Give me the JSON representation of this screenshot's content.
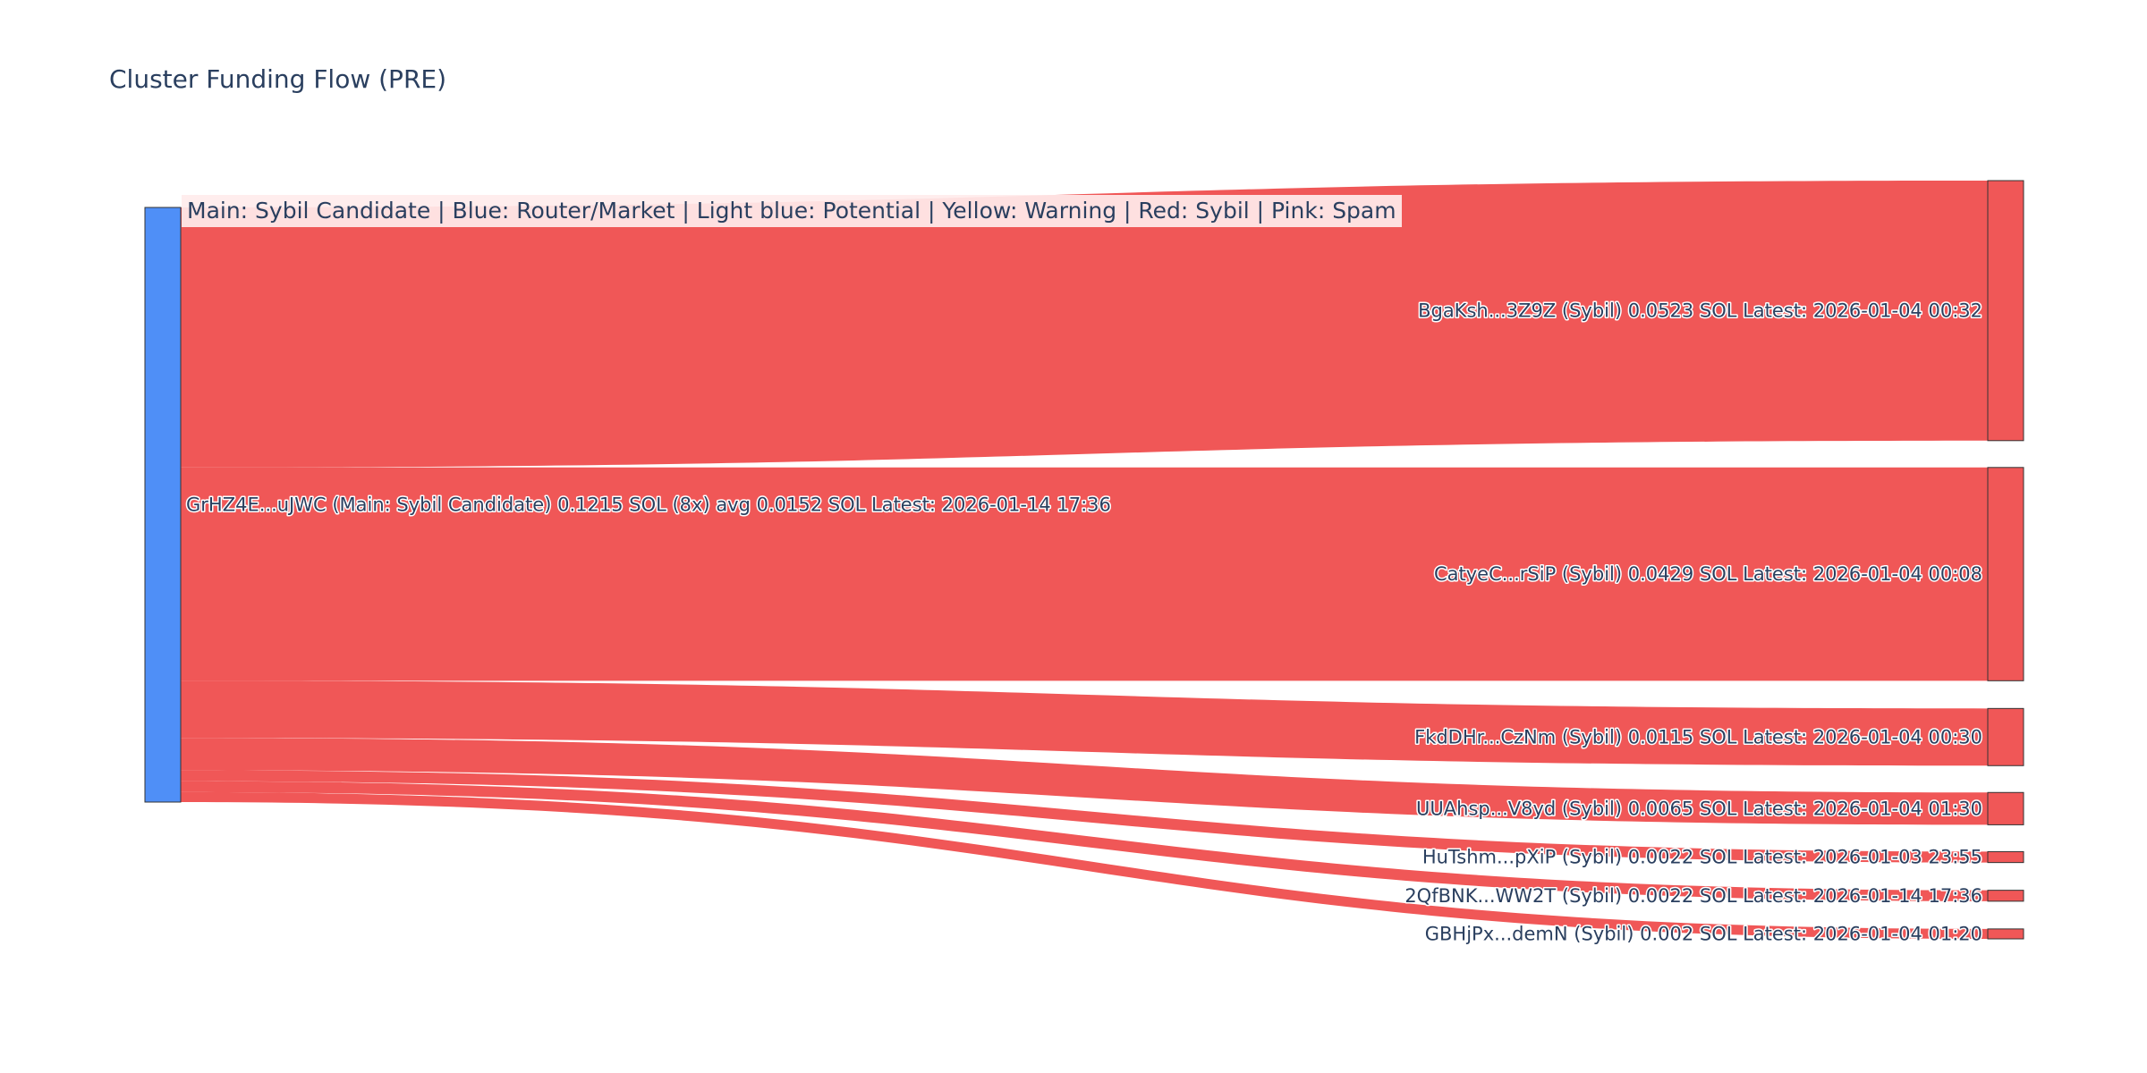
{
  "title": "Cluster Funding Flow (PRE)",
  "legend_text": "Main: Sybil Candidate  |  Blue: Router/Market | Light blue: Potential | Yellow: Warning | Red: Sybil | Pink: Spam",
  "colors": {
    "source_node": "#4f8ff7",
    "sybil": "#f05757",
    "node_border": "#333333"
  },
  "chart_data": {
    "type": "sankey",
    "source": {
      "label": "GrHZ4E...uJWC (Main: Sybil Candidate) 0.1215 SOL (8x) avg 0.0152 SOL Latest: 2026-01-14 17:36",
      "value": 0.1215
    },
    "targets": [
      {
        "label": "BgaKsh...3Z9Z (Sybil) 0.0523 SOL Latest: 2026-01-04 00:32",
        "value": 0.0523,
        "category": "sybil"
      },
      {
        "label": "CatyeC...rSiP (Sybil) 0.0429 SOL Latest: 2026-01-04 00:08",
        "value": 0.0429,
        "category": "sybil"
      },
      {
        "label": "FkdDHr...CzNm (Sybil) 0.0115 SOL Latest: 2026-01-04 00:30",
        "value": 0.0115,
        "category": "sybil"
      },
      {
        "label": "UUAhsp...V8yd (Sybil) 0.0065 SOL Latest: 2026-01-04 01:30",
        "value": 0.0065,
        "category": "sybil"
      },
      {
        "label": "HuTshm...pXiP (Sybil) 0.0022 SOL Latest: 2026-01-03 23:55",
        "value": 0.0022,
        "category": "sybil"
      },
      {
        "label": "2QfBNK...WW2T (Sybil) 0.0022 SOL Latest: 2026-01-14 17:36",
        "value": 0.0022,
        "category": "sybil"
      },
      {
        "label": "GBHjPx...demN (Sybil) 0.002 SOL Latest: 2026-01-04 01:20",
        "value": 0.002,
        "category": "sybil"
      }
    ]
  }
}
